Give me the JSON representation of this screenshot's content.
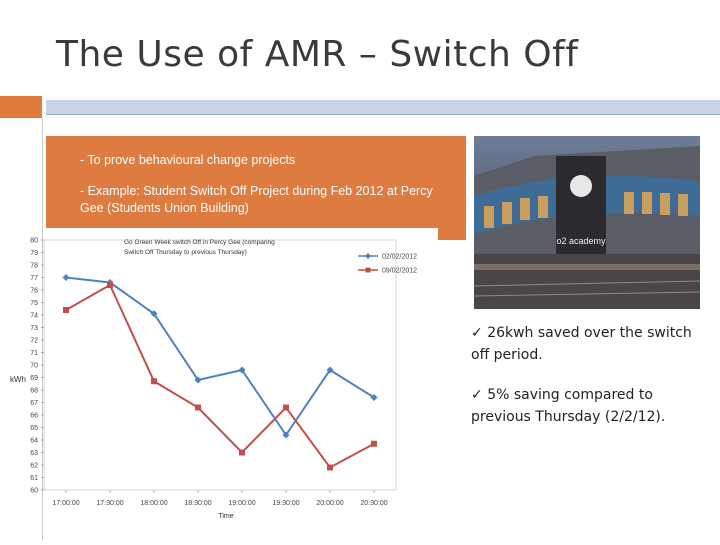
{
  "slide": {
    "title": "The Use of AMR – Switch Off",
    "box_lines": [
      "- To prove behavioural change projects",
      "-  Example: Student Switch Off Project during Feb 2012 at Percy Gee (Students Union Building)"
    ],
    "bullets": [
      {
        "mark": "✓",
        "text": "26kwh saved over the switch off period."
      },
      {
        "mark": "✓",
        "text": "5% saving compared to previous Thursday (2/2/12)."
      }
    ],
    "photo_sign": "o2 academy",
    "colors": {
      "accent_orange": "#de7b40",
      "bar_blue": "#c8d4e6"
    }
  },
  "chart_data": {
    "type": "line",
    "title": "Go Green Week switch Off in Percy Gee (comparing Switch Off Thursday to previous Thursday)",
    "xlabel": "Time",
    "ylabel": "kWh",
    "categories": [
      "17:00:00",
      "17:30:00",
      "18:00:00",
      "18:30:00",
      "19:00:00",
      "19:30:00",
      "20:00:00",
      "20:30:00"
    ],
    "ylim": [
      60,
      80
    ],
    "yticks": [
      60,
      61,
      62,
      63,
      64,
      65,
      66,
      67,
      68,
      69,
      70,
      71,
      72,
      73,
      74,
      75,
      76,
      77,
      78,
      79,
      80
    ],
    "legend_position": "top-right",
    "series": [
      {
        "name": "02/02/2012",
        "color": "#4f81bd",
        "marker": "diamond",
        "values": [
          77.0,
          76.6,
          74.1,
          68.8,
          69.6,
          64.4,
          69.6,
          67.4
        ]
      },
      {
        "name": "09/02/2012",
        "color": "#c0504d",
        "marker": "square",
        "values": [
          74.4,
          76.4,
          68.7,
          66.6,
          63.0,
          66.6,
          61.8,
          63.7
        ]
      }
    ]
  }
}
